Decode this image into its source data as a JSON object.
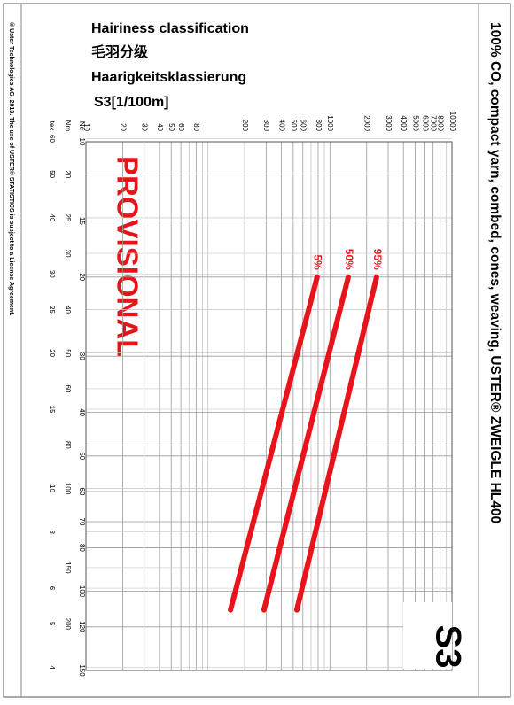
{
  "chart_data": {
    "type": "line",
    "title_lines": [
      "Hairiness classification",
      "毛羽分级",
      "Haarigkeitsklassierung",
      "S3[1/100m]"
    ],
    "header": "100% CO, compact yarn, combed, cones, weaving, USTER® ZWEIGLE HL400",
    "copyright": "© Uster Technologies AG, 2013. The use of USTER® STATISTICS is subject to a License Agreement.",
    "annotation": "PROVISIONAL",
    "badge": "S3",
    "xscale": "log",
    "xlim": [
      10,
      10000
    ],
    "xticks": [
      10,
      20,
      30,
      40,
      50,
      60,
      80,
      200,
      300,
      400,
      500,
      600,
      800,
      1000,
      2000,
      3000,
      4000,
      5000,
      6000,
      7000,
      8000,
      10000
    ],
    "xminor": [
      70,
      90,
      100,
      700,
      900,
      9000
    ],
    "yscale": "log",
    "ylim": [
      10,
      150
    ],
    "ylabel": "Ne",
    "yticks": [
      10,
      15,
      20,
      30,
      40,
      50,
      60,
      70,
      80,
      100,
      120,
      150
    ],
    "nm_axis": {
      "label": "Nm",
      "ticks": [
        20,
        25,
        30,
        40,
        50,
        60,
        80,
        100,
        150,
        200
      ]
    },
    "tex_axis": {
      "label": "tex",
      "ticks": [
        60,
        50,
        40,
        30,
        25,
        20,
        15,
        10,
        8,
        6,
        5,
        4
      ]
    },
    "grid": true,
    "series": [
      {
        "name": "5%",
        "color": "#e8141b",
        "x": [
          785,
          153
        ],
        "values": [
          20,
          110
        ]
      },
      {
        "name": "50%",
        "color": "#e8141b",
        "x": [
          1413,
          288
        ],
        "values": [
          20,
          110
        ]
      },
      {
        "name": "95%",
        "color": "#e8141b",
        "x": [
          2410,
          535
        ],
        "values": [
          20,
          110
        ]
      }
    ]
  }
}
